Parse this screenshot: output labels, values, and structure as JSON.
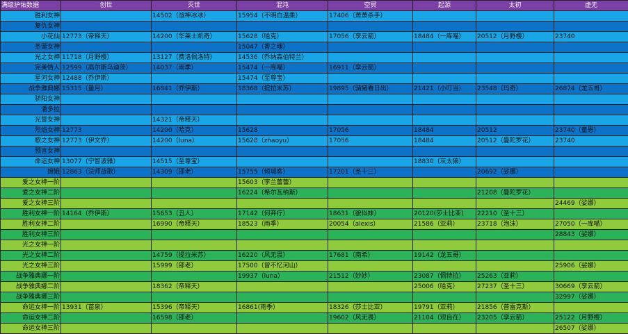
{
  "header": [
    "满级护佑数据",
    "创世",
    "灭世",
    "混沌",
    "空冥",
    "起源",
    "太初",
    "虚无"
  ],
  "rows": [
    {
      "style": "blue-light",
      "cells": [
        "胜利女神",
        "",
        "14502（战神冰冰）",
        "15954（不明白温柔）",
        "17406（萧萧杀手）",
        "",
        "",
        ""
      ]
    },
    {
      "style": "blue-dark",
      "cells": [
        "复仇女神",
        "",
        "",
        "",
        "",
        "",
        "",
        ""
      ]
    },
    {
      "style": "blue-light",
      "cells": [
        "小花仙",
        "12773（帝释天）",
        "14200（华莱士凯奇）",
        "15628（哈克）",
        "17056（孪云箭）",
        "18484（一库喵）",
        "20512（月野樱）",
        "23740"
      ]
    },
    {
      "style": "blue-dark",
      "cells": [
        "圣诞女神",
        "",
        "",
        "15047（香之魂）",
        "",
        "",
        "",
        ""
      ]
    },
    {
      "style": "blue-light",
      "cells": [
        "光之女神",
        "11718（月野樱）",
        "13127（费洛佩洛特）",
        "14536（乔纳森伯特兰）",
        "",
        "",
        "",
        ""
      ]
    },
    {
      "style": "blue-dark",
      "cells": [
        "完美情人",
        "12599（高尔斯乌迪茨）",
        "14037（雨季）",
        "15474（一库喵）",
        "16911（孪云箭）",
        "",
        "",
        ""
      ]
    },
    {
      "style": "blue-light",
      "cells": [
        "星河女神",
        "12488（乔伊斯）",
        "",
        "15474（至尊宝）",
        "",
        "",
        "",
        ""
      ]
    },
    {
      "style": "blue-dark",
      "cells": [
        "战争雅典娜",
        "15315（量月）",
        "16841（乔伊斯）",
        "18368（提拉米苏）",
        "19895（骑猪看日出）",
        "21421（小叮当）",
        "23548（玛奇）",
        "26874（龙五哥）"
      ]
    },
    {
      "style": "blue-light",
      "cells": [
        "骄阳女神",
        "",
        "",
        "",
        "",
        "",
        "",
        ""
      ]
    },
    {
      "style": "blue-dark",
      "cells": [
        "潘多拉",
        "",
        "",
        "",
        "",
        "",
        "",
        ""
      ]
    },
    {
      "style": "blue-light",
      "cells": [
        "光誓女神",
        "",
        "14321（帝释天）",
        "",
        "",
        "",
        "",
        ""
      ]
    },
    {
      "style": "blue-dark",
      "cells": [
        "烈焰女神",
        "12773",
        "14200（哈克）",
        "15628",
        "17056",
        "18484",
        "20512",
        "23740（童恩）"
      ]
    },
    {
      "style": "blue-light",
      "cells": [
        "歌之女神",
        "12773（伊文乔）",
        "14200（luna）",
        "15628（zhaoyu）",
        "17056",
        "18484",
        "20512（曼陀罗花）",
        "23740"
      ]
    },
    {
      "style": "blue-dark",
      "cells": [
        "预言女神",
        "",
        "",
        "",
        "",
        "",
        "",
        ""
      ]
    },
    {
      "style": "blue-light",
      "cells": [
        "命运女神",
        "13077（宁智波雅）",
        "14515（至尊宝）",
        "",
        "",
        "18830（灰太狼）",
        "",
        ""
      ]
    },
    {
      "style": "blue-dark",
      "cells": [
        "嫦娥",
        "12863（法师战歌）",
        "14309（邵老）",
        "15755（倾城客）",
        "17201（圣十三）",
        "",
        "20692（娑娜）",
        ""
      ]
    },
    {
      "style": "green-a",
      "cells": [
        "爱之女神一阶",
        "",
        "",
        "15603（李兰蕾蕾）",
        "",
        "",
        "",
        ""
      ]
    },
    {
      "style": "green-b",
      "cells": [
        "爱之女神二阶",
        "",
        "",
        "16224（希尔瓦纳斯）",
        "",
        "",
        "21208（曼陀罗花）",
        ""
      ]
    },
    {
      "style": "green-a",
      "cells": [
        "爱之女神三阶",
        "",
        "",
        "",
        "",
        "",
        "",
        "24469（娑娜）"
      ]
    },
    {
      "style": "green-b",
      "cells": [
        "胜利女神一阶",
        "14164（乔伊斯）",
        "15653（丑人）",
        "17142（何弃疗）",
        "18631（貌似妹）",
        "20120(莎士比亚)",
        "22210（圣十三）",
        ""
      ]
    },
    {
      "style": "green-a",
      "cells": [
        "胜利女神二阶",
        "",
        "16990（帝释天）",
        "18523（雨季）",
        "20054（alexis）",
        "21586（亚莉）",
        "23718（泡沫）",
        "27050（一库喵）"
      ]
    },
    {
      "style": "green-b",
      "cells": [
        "胜利女神三阶",
        "",
        "",
        "",
        "",
        "",
        "",
        "28843（娑娜）"
      ]
    },
    {
      "style": "green-a",
      "cells": [
        "光之女神一阶",
        "",
        "",
        "",
        "",
        "",
        "",
        ""
      ]
    },
    {
      "style": "green-b",
      "cells": [
        "光之女神二阶",
        "",
        "14759（提拉米苏）",
        "16220（风无畏）",
        "17681（南希）",
        "19142（龙五哥）",
        "",
        ""
      ]
    },
    {
      "style": "green-a",
      "cells": [
        "光之女神三阶",
        "",
        "15999（邵老）",
        "17500（曾不忆河山）",
        "",
        "",
        "",
        "25906（娑娜）"
      ]
    },
    {
      "style": "green-b",
      "cells": [
        "战争雅典娜一阶",
        "",
        "",
        "19937（luna）",
        "21512（妙妙）",
        "23087（佩特拉）",
        "25263（亚莉）",
        ""
      ]
    },
    {
      "style": "green-a",
      "cells": [
        "战争雅典娜二阶",
        "",
        "18362（帝释天）",
        "",
        "",
        "25006（哈克）",
        "27237（圣十三）",
        "30669（孪云箭）"
      ]
    },
    {
      "style": "green-b",
      "cells": [
        "战争雅典娜三阶",
        "",
        "",
        "",
        "",
        "",
        "",
        "32997（娑娜）"
      ]
    },
    {
      "style": "green-a",
      "cells": [
        "命运女神一阶",
        "13931（苗泉）",
        "15396（帝释天）",
        "16861(雨季）",
        "18326（莎士比亚）",
        "19791（亚莉）",
        "21856（普雷克斯）",
        ""
      ]
    },
    {
      "style": "green-b",
      "cells": [
        "命运女神二阶",
        "",
        "16598（邵老）",
        "",
        "19602（风无畏）",
        "21104（观自在）",
        "23205（孪云箭）",
        "25122（月野樱）"
      ]
    },
    {
      "style": "green-a",
      "cells": [
        "命运女神三阶",
        "",
        "",
        "",
        "",
        "",
        "",
        "26507（娑娜）"
      ]
    }
  ]
}
